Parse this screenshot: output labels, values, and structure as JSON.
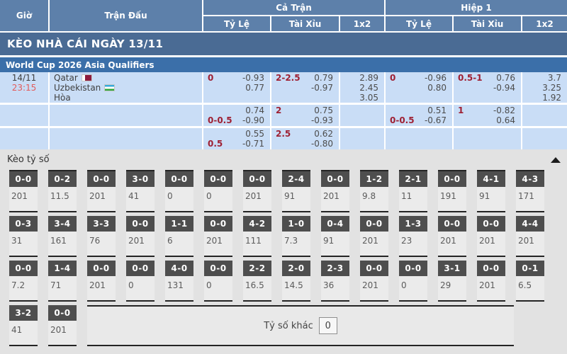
{
  "table_header": {
    "time": "Giờ",
    "match": "Trận Đấu",
    "full_time_group": "Cả Trận",
    "first_half_group": "Hiệp 1",
    "sub_columns": [
      "Tỷ Lệ",
      "Tài Xỉu",
      "1x2",
      "Tỷ Lệ",
      "Tài Xỉu",
      "1x2"
    ]
  },
  "day_title": "KÈO NHÀ CÁI NGÀY 13/11",
  "league_title": "World Cup 2026 Asia Qualifiers",
  "match": {
    "date": "14/11",
    "time": "23:15",
    "home_team": "Qatar",
    "away_team": "Uzbekistan",
    "draw_label": "Hòa"
  },
  "icons": {
    "home_flag": "qatar-flag",
    "away_flag": "uzbekistan-flag",
    "collapse_arrow": "▲"
  },
  "colors": {
    "header_blue": "#5d80aa",
    "day_bar_blue": "#4a6b94",
    "league_bar_blue": "#3b6fa9",
    "row_light_blue": "#c9ddf6",
    "handicap_red": "#9e2033",
    "time_red": "#e25b5b",
    "score_box_gray": "#4e4e4e",
    "section_gray": "#e2e2e2"
  },
  "odds_rows": [
    {
      "ft_hdp": {
        "l1": "0",
        "r1": "-0.93",
        "l2": "",
        "r2": "0.77"
      },
      "ft_ou": {
        "l1": "2-2.5",
        "r1": "0.79",
        "l2": "",
        "r2": "-0.97"
      },
      "ft_1x2": {
        "v1": "2.89",
        "v2": "2.45",
        "v3": "3.05"
      },
      "h1_hdp": {
        "l1": "0",
        "r1": "-0.96",
        "l2": "",
        "r2": "0.80"
      },
      "h1_ou": {
        "l1": "0.5-1",
        "r1": "0.76",
        "l2": "",
        "r2": "-0.94"
      },
      "h1_1x2": {
        "v1": "3.7",
        "v2": "3.25",
        "v3": "1.92"
      }
    },
    {
      "ft_hdp": {
        "l1": "",
        "r1": "0.74",
        "l2": "0-0.5",
        "r2": "-0.90"
      },
      "ft_ou": {
        "l1": "2",
        "r1": "0.75",
        "l2": "",
        "r2": "-0.93"
      },
      "h1_hdp": {
        "l1": "",
        "r1": "0.51",
        "l2": "0-0.5",
        "r2": "-0.67"
      },
      "h1_ou": {
        "l1": "1",
        "r1": "-0.82",
        "l2": "",
        "r2": "0.64"
      }
    },
    {
      "ft_hdp": {
        "l1": "",
        "r1": "0.55",
        "l2": "0.5",
        "r2": "-0.71"
      },
      "ft_ou": {
        "l1": "2.5",
        "r1": "0.62",
        "l2": "",
        "r2": "-0.80"
      }
    }
  ],
  "score_section": {
    "title": "Kèo tỷ số",
    "other_label": "Tỷ số khác",
    "other_value": "0",
    "rows": [
      [
        {
          "score": "0-0",
          "odds": "201"
        },
        {
          "score": "0-2",
          "odds": "11.5"
        },
        {
          "score": "0-0",
          "odds": "201"
        },
        {
          "score": "3-0",
          "odds": "41"
        },
        {
          "score": "0-0",
          "odds": "0"
        },
        {
          "score": "0-0",
          "odds": "0"
        },
        {
          "score": "0-0",
          "odds": "201"
        },
        {
          "score": "2-4",
          "odds": "91"
        },
        {
          "score": "0-0",
          "odds": "201"
        },
        {
          "score": "1-2",
          "odds": "9.8"
        },
        {
          "score": "2-1",
          "odds": "11"
        },
        {
          "score": "0-0",
          "odds": "191"
        },
        {
          "score": "4-1",
          "odds": "91"
        },
        {
          "score": "4-3",
          "odds": "171"
        }
      ],
      [
        {
          "score": "0-3",
          "odds": "31"
        },
        {
          "score": "3-4",
          "odds": "161"
        },
        {
          "score": "3-3",
          "odds": "76"
        },
        {
          "score": "0-0",
          "odds": "201"
        },
        {
          "score": "1-1",
          "odds": "6"
        },
        {
          "score": "0-0",
          "odds": "201"
        },
        {
          "score": "4-2",
          "odds": "111"
        },
        {
          "score": "1-0",
          "odds": "7.3"
        },
        {
          "score": "0-4",
          "odds": "91"
        },
        {
          "score": "0-0",
          "odds": "201"
        },
        {
          "score": "1-3",
          "odds": "23"
        },
        {
          "score": "0-0",
          "odds": "201"
        },
        {
          "score": "0-0",
          "odds": "201"
        },
        {
          "score": "4-4",
          "odds": "201"
        }
      ],
      [
        {
          "score": "0-0",
          "odds": "7.2"
        },
        {
          "score": "1-4",
          "odds": "71"
        },
        {
          "score": "0-0",
          "odds": "201"
        },
        {
          "score": "0-0",
          "odds": "0"
        },
        {
          "score": "4-0",
          "odds": "131"
        },
        {
          "score": "0-0",
          "odds": "0"
        },
        {
          "score": "2-2",
          "odds": "16.5"
        },
        {
          "score": "2-0",
          "odds": "14.5"
        },
        {
          "score": "2-3",
          "odds": "36"
        },
        {
          "score": "0-0",
          "odds": "201"
        },
        {
          "score": "0-0",
          "odds": "0"
        },
        {
          "score": "3-1",
          "odds": "29"
        },
        {
          "score": "0-0",
          "odds": "201"
        },
        {
          "score": "0-1",
          "odds": "6.5"
        }
      ],
      [
        {
          "score": "3-2",
          "odds": "41"
        },
        {
          "score": "0-0",
          "odds": "201"
        }
      ]
    ]
  }
}
